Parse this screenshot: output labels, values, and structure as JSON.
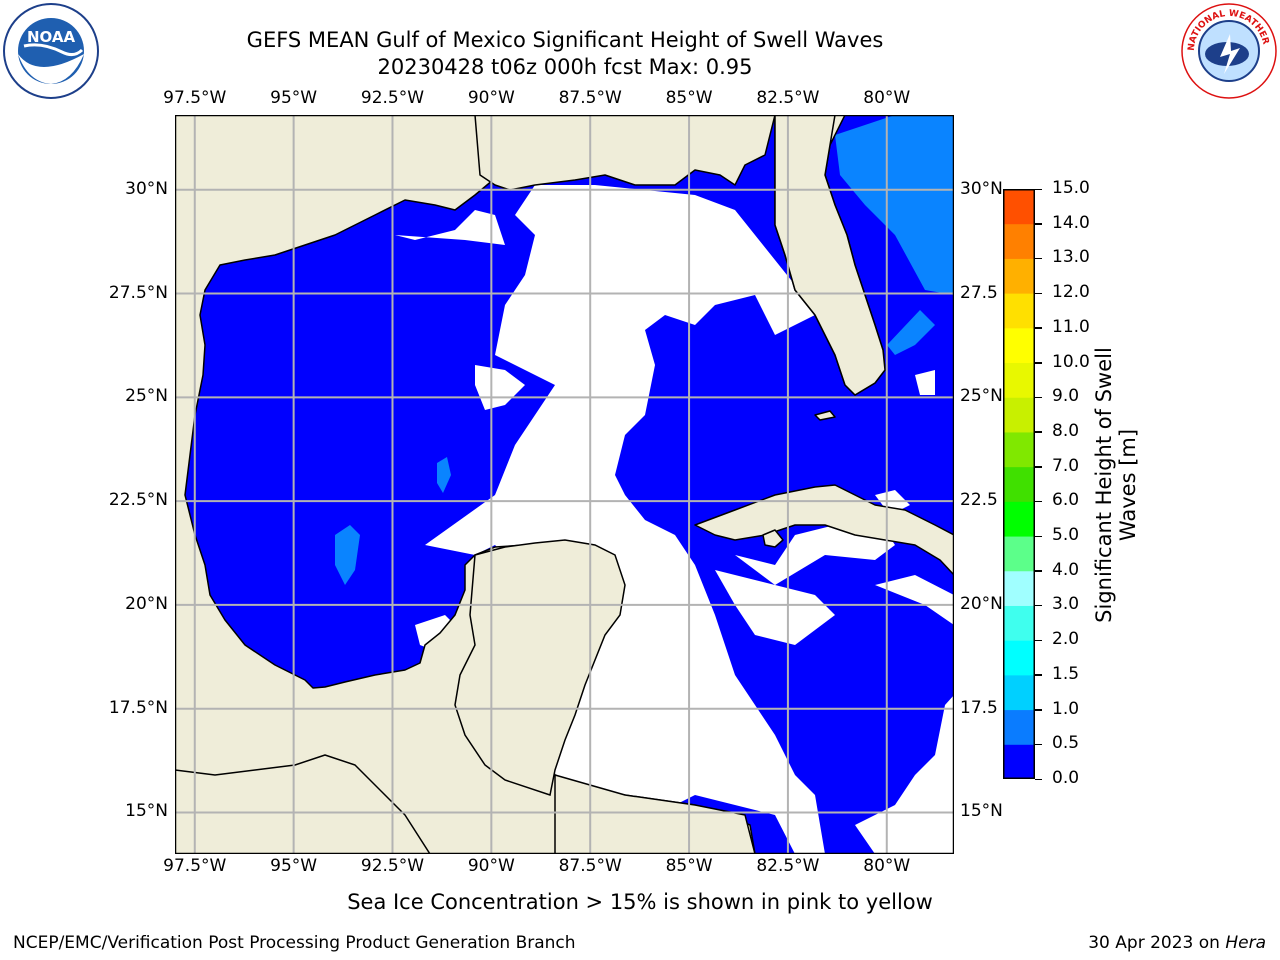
{
  "title": {
    "line1": "GEFS MEAN Gulf of Mexico Significant Height of Swell Waves",
    "line2": "20230428 t06z 000h fcst   Max: 0.95"
  },
  "map": {
    "lon_ticks": [
      "97.5°W",
      "95°W",
      "92.5°W",
      "90°W",
      "87.5°W",
      "85°W",
      "82.5°W",
      "80°W"
    ],
    "lat_ticks_left": [
      "30°N",
      "27.5°N",
      "25°N",
      "22.5°N",
      "20°N",
      "17.5°N",
      "15°N"
    ],
    "lat_ticks_right": [
      "30°N",
      "27.5",
      "25°N",
      "22.5",
      "20°N",
      "17.5",
      "15°N"
    ],
    "extent": {
      "lon": [
        -98,
        -78.3
      ],
      "lat": [
        14,
        31.8
      ]
    },
    "colors": {
      "land": "#efedd9",
      "sea_zero": "#0000ff",
      "sea_low": "#0a84ff",
      "grid": "#b3b3b3"
    }
  },
  "colorbar": {
    "label_line1": "Significant Height of Swell",
    "label_line2": "Waves [m]",
    "ticks": [
      "0.0",
      "0.5",
      "1.0",
      "1.5",
      "2.0",
      "3.0",
      "4.0",
      "5.0",
      "6.0",
      "7.0",
      "8.0",
      "9.0",
      "10.0",
      "11.0",
      "12.0",
      "13.0",
      "14.0",
      "15.0"
    ],
    "colors": [
      "#0000ff",
      "#0a7cff",
      "#00d0ff",
      "#00ffff",
      "#3fffee",
      "#a0ffff",
      "#5cff8a",
      "#00ff00",
      "#40e000",
      "#80e800",
      "#c8f000",
      "#e8f800",
      "#ffff00",
      "#ffe000",
      "#ffb000",
      "#ff8000",
      "#ff5000",
      "#ff1000"
    ]
  },
  "sea_ice_note": "Sea Ice Concentration > 15% is shown in pink to yellow",
  "footer": {
    "left": "NCEP/EMC/Verification Post Processing Product Generation Branch",
    "right_date": "30 Apr 2023 on ",
    "right_host": "Hera"
  },
  "logos": {
    "noaa_text": "NOAA",
    "nws_text": "NATIONAL WEATHER SERVICE"
  }
}
